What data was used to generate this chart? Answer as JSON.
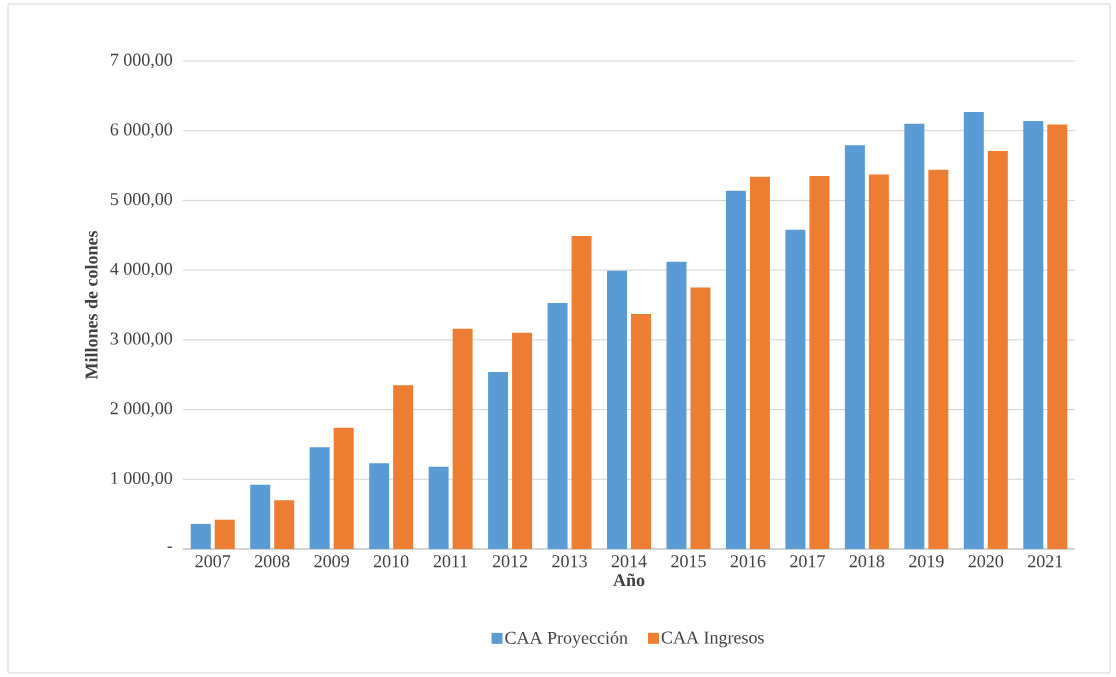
{
  "chart_data": {
    "type": "bar",
    "xlabel": "Año",
    "ylabel": "Millones de colones",
    "categories": [
      "2007",
      "2008",
      "2009",
      "2010",
      "2011",
      "2012",
      "2013",
      "2014",
      "2015",
      "2016",
      "2017",
      "2018",
      "2019",
      "2020",
      "2021"
    ],
    "series": [
      {
        "name": "CAA Proyección",
        "color": "#5b9bd5",
        "values": [
          360,
          920,
          1460,
          1230,
          1180,
          2540,
          3530,
          3990,
          4120,
          5140,
          4580,
          5790,
          6100,
          6270,
          6140
        ]
      },
      {
        "name": "CAA Ingresos",
        "color": "#ed7d31",
        "values": [
          420,
          700,
          1740,
          2350,
          3160,
          3100,
          4490,
          3370,
          3750,
          5340,
          5350,
          5370,
          5440,
          5710,
          6090
        ]
      }
    ],
    "ylim": [
      0,
      7000
    ],
    "yticks": [
      {
        "value": 0,
        "label": "-"
      },
      {
        "value": 1000,
        "label": "1 000,00"
      },
      {
        "value": 2000,
        "label": "2 000,00"
      },
      {
        "value": 3000,
        "label": "3 000,00"
      },
      {
        "value": 4000,
        "label": "4 000,00"
      },
      {
        "value": 5000,
        "label": "5 000,00"
      },
      {
        "value": 6000,
        "label": "6 000,00"
      },
      {
        "value": 7000,
        "label": "7 000,00"
      }
    ],
    "grid": "y",
    "legend": "bottom"
  }
}
